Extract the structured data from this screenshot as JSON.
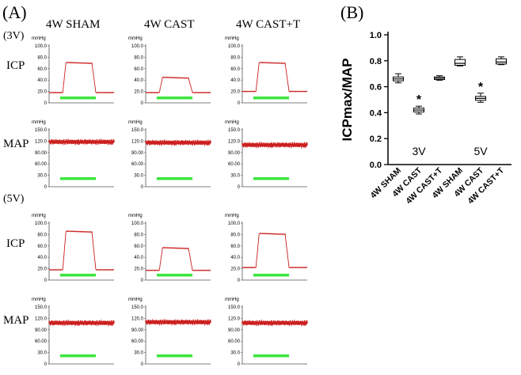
{
  "panel_a": {
    "letter": "(A)",
    "columns": [
      "4W SHAM",
      "4W CAST",
      "4W CAST+T"
    ],
    "groups": [
      "(3V)",
      "(5V)"
    ],
    "row_labels": {
      "icp": "ICP",
      "map": "MAP"
    },
    "unit": "mmHg",
    "icp_ticks": [
      "100.0",
      "80.0",
      "60.0",
      "40.0",
      "20.0",
      "0"
    ],
    "map_ticks": [
      "150.0",
      "120.0",
      "90.00",
      "60.00",
      "30.0",
      "0"
    ],
    "map_unit_cast_t_3v": "mmHg",
    "colors": {
      "trace": "#cc1f1f",
      "stim_bar": "#3ce63c",
      "axis": "#555555"
    },
    "tracings": [
      {
        "group": "3V",
        "type": "ICP",
        "column": "4W SHAM",
        "baseline": 18,
        "plateau": 71
      },
      {
        "group": "3V",
        "type": "ICP",
        "column": "4W CAST",
        "baseline": 18,
        "plateau": 45
      },
      {
        "group": "3V",
        "type": "ICP",
        "column": "4W CAST+T",
        "baseline": 20,
        "plateau": 71
      },
      {
        "group": "3V",
        "type": "MAP",
        "column": "4W SHAM",
        "level": 118
      },
      {
        "group": "3V",
        "type": "MAP",
        "column": "4W CAST",
        "level": 116
      },
      {
        "group": "3V",
        "type": "MAP",
        "column": "4W CAST+T",
        "level": 110
      },
      {
        "group": "5V",
        "type": "ICP",
        "column": "4W SHAM",
        "baseline": 18,
        "plateau": 86
      },
      {
        "group": "5V",
        "type": "ICP",
        "column": "4W CAST",
        "baseline": 17,
        "plateau": 57
      },
      {
        "group": "5V",
        "type": "ICP",
        "column": "4W CAST+T",
        "baseline": 22,
        "plateau": 82
      },
      {
        "group": "5V",
        "type": "MAP",
        "column": "4W SHAM",
        "level": 108
      },
      {
        "group": "5V",
        "type": "MAP",
        "column": "4W CAST",
        "level": 110
      },
      {
        "group": "5V",
        "type": "MAP",
        "column": "4W CAST+T",
        "level": 108
      }
    ]
  },
  "panel_b": {
    "letter": "(B)",
    "chart_data": {
      "type": "box",
      "ylabel": "ICPmax/MAP",
      "ylim": [
        0.0,
        1.0
      ],
      "yticks": [
        "0.0",
        "0.2",
        "0.4",
        "0.6",
        "0.8",
        "1.0"
      ],
      "categories": [
        "4W SHAM",
        "4W CAST",
        "4W CAST+T",
        "4W SHAM",
        "4W CAST",
        "4W CAST+T"
      ],
      "group_labels": [
        "3V",
        "5V"
      ],
      "boxes": [
        {
          "min": 0.63,
          "q1": 0.645,
          "median": 0.66,
          "q3": 0.675,
          "max": 0.7
        },
        {
          "min": 0.39,
          "q1": 0.405,
          "median": 0.42,
          "q3": 0.435,
          "max": 0.45
        },
        {
          "min": 0.65,
          "q1": 0.655,
          "median": 0.665,
          "q3": 0.675,
          "max": 0.685
        },
        {
          "min": 0.76,
          "q1": 0.765,
          "median": 0.78,
          "q3": 0.81,
          "max": 0.83
        },
        {
          "min": 0.48,
          "q1": 0.495,
          "median": 0.51,
          "q3": 0.525,
          "max": 0.55
        },
        {
          "min": 0.77,
          "q1": 0.775,
          "median": 0.79,
          "q3": 0.815,
          "max": 0.83
        }
      ],
      "annotations": [
        {
          "category_index": 1,
          "text": "*"
        },
        {
          "category_index": 4,
          "text": "*"
        }
      ]
    }
  }
}
